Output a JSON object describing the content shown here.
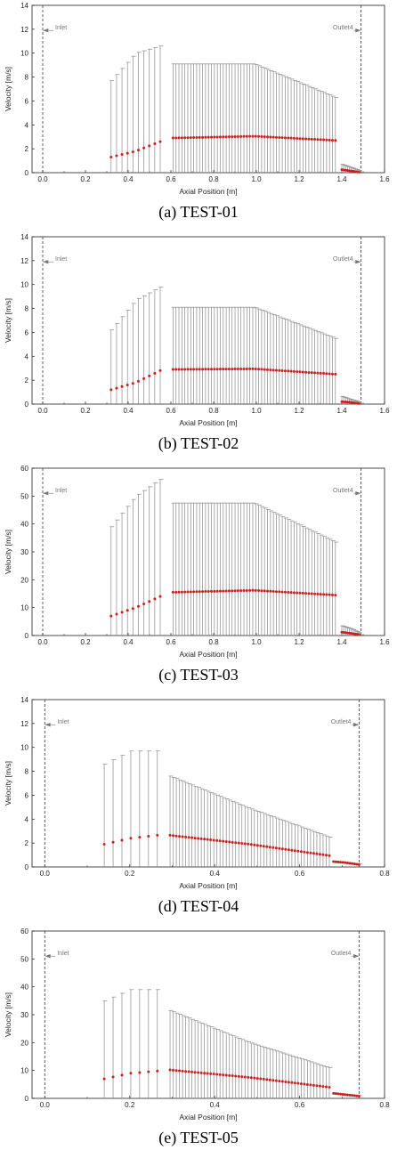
{
  "chart_data": [
    {
      "type": "scatter",
      "caption": "(a)  TEST-01",
      "xlabel": "Axial Position [m]",
      "ylabel": "Velocity [m/s]",
      "xlim": [
        -0.05,
        1.6
      ],
      "ylim": [
        0,
        14
      ],
      "xticks": [
        "0.0",
        "0.2",
        "0.4",
        "0.6",
        "0.8",
        "1.0",
        "1.2",
        "1.4",
        "1.6"
      ],
      "yticks": [
        "0",
        "2",
        "4",
        "6",
        "8",
        "10",
        "12",
        "14"
      ],
      "inlet": {
        "label": "Inlet",
        "x": 0.0
      },
      "outlet": {
        "label": "Outlet4",
        "x": 1.49
      },
      "groups": [
        {
          "x_start": 0.32,
          "x_end": 0.55,
          "n": 10,
          "mean": [
            1.3,
            1.8,
            2.6
          ],
          "upper": [
            7.7,
            10.0,
            10.6
          ]
        },
        {
          "x_start": 0.61,
          "x_end": 1.37,
          "n": 56,
          "mean": [
            2.9,
            3.05,
            2.7
          ],
          "upper": [
            9.1,
            9.1,
            6.3
          ]
        },
        {
          "x_start": 1.4,
          "x_end": 1.48,
          "n": 10,
          "mean": [
            0.25,
            0.15,
            0.05
          ],
          "upper": [
            0.7,
            0.45,
            0.2
          ]
        }
      ]
    },
    {
      "type": "scatter",
      "caption": "(b)  TEST-02",
      "xlabel": "Axial Position [m]",
      "ylabel": "Velocity [m/s]",
      "xlim": [
        -0.05,
        1.6
      ],
      "ylim": [
        0,
        14
      ],
      "xticks": [
        "0.0",
        "0.2",
        "0.4",
        "0.6",
        "0.8",
        "1.0",
        "1.2",
        "1.4",
        "1.6"
      ],
      "yticks": [
        "0",
        "2",
        "4",
        "6",
        "8",
        "10",
        "12",
        "14"
      ],
      "inlet": {
        "label": "Inlet",
        "x": 0.0
      },
      "outlet": {
        "label": "Outlet4",
        "x": 1.49
      },
      "groups": [
        {
          "x_start": 0.32,
          "x_end": 0.55,
          "n": 10,
          "mean": [
            1.2,
            1.8,
            2.8
          ],
          "upper": [
            6.2,
            8.7,
            9.8
          ]
        },
        {
          "x_start": 0.61,
          "x_end": 1.37,
          "n": 56,
          "mean": [
            2.9,
            2.95,
            2.5
          ],
          "upper": [
            8.1,
            8.1,
            5.5
          ]
        },
        {
          "x_start": 1.4,
          "x_end": 1.48,
          "n": 10,
          "mean": [
            0.2,
            0.15,
            0.05
          ],
          "upper": [
            0.65,
            0.4,
            0.2
          ]
        }
      ]
    },
    {
      "type": "scatter",
      "caption": "(c)  TEST-03",
      "xlabel": "Axial Position [m]",
      "ylabel": "Velocity [m/s]",
      "xlim": [
        -0.05,
        1.6
      ],
      "ylim": [
        0,
        60
      ],
      "xticks": [
        "0.0",
        "0.2",
        "0.4",
        "0.6",
        "0.8",
        "1.0",
        "1.2",
        "1.4",
        "1.6"
      ],
      "yticks": [
        "0",
        "10",
        "20",
        "30",
        "40",
        "50",
        "60"
      ],
      "inlet": {
        "label": "Inlet",
        "x": 0.0
      },
      "outlet": {
        "label": "Outlet4",
        "x": 1.49
      },
      "groups": [
        {
          "x_start": 0.32,
          "x_end": 0.55,
          "n": 10,
          "mean": [
            7.0,
            10.0,
            14.0
          ],
          "upper": [
            39.0,
            50.0,
            56.0
          ]
        },
        {
          "x_start": 0.61,
          "x_end": 1.37,
          "n": 56,
          "mean": [
            15.5,
            16.2,
            14.5
          ],
          "upper": [
            47.5,
            47.5,
            33.5
          ]
        },
        {
          "x_start": 1.4,
          "x_end": 1.48,
          "n": 10,
          "mean": [
            1.2,
            0.8,
            0.4
          ],
          "upper": [
            3.5,
            2.5,
            1.2
          ]
        }
      ]
    },
    {
      "type": "scatter",
      "caption": "(d)  TEST-04",
      "xlabel": "Axial Position [m]",
      "ylabel": "Velocity [m/s]",
      "xlim": [
        -0.03,
        0.8
      ],
      "ylim": [
        0,
        14
      ],
      "xticks": [
        "0.0",
        "0.2",
        "0.4",
        "0.6",
        "0.8"
      ],
      "yticks": [
        "0",
        "2",
        "4",
        "6",
        "8",
        "10",
        "12",
        "14"
      ],
      "inlet": {
        "label": "Inlet",
        "x": 0.0
      },
      "outlet": {
        "label": "Outlet4",
        "x": 0.74
      },
      "groups": [
        {
          "x_start": 0.14,
          "x_end": 0.265,
          "n": 7,
          "mean": [
            1.9,
            2.4,
            2.65
          ],
          "upper": [
            8.6,
            9.7,
            9.7
          ]
        },
        {
          "x_start": 0.295,
          "x_end": 0.67,
          "n": 52,
          "mean": [
            2.65,
            1.9,
            0.95
          ],
          "upper": [
            7.6,
            4.9,
            2.5
          ]
        },
        {
          "x_start": 0.68,
          "x_end": 0.74,
          "n": 12,
          "mean": [
            0.45,
            0.35,
            0.2
          ],
          "upper": [
            0.5,
            0.4,
            0.25
          ]
        }
      ]
    },
    {
      "type": "scatter",
      "caption": "(e)  TEST-05",
      "xlabel": "Axial Position [m]",
      "ylabel": "Velocity [m/s]",
      "xlim": [
        -0.03,
        0.8
      ],
      "ylim": [
        0,
        60
      ],
      "xticks": [
        "0.0",
        "0.2",
        "0.4",
        "0.6",
        "0.8"
      ],
      "yticks": [
        "0",
        "10",
        "20",
        "30",
        "40",
        "50",
        "60"
      ],
      "inlet": {
        "label": "Inlet",
        "x": 0.0
      },
      "outlet": {
        "label": "Outlet4",
        "x": 0.74
      },
      "groups": [
        {
          "x_start": 0.14,
          "x_end": 0.265,
          "n": 7,
          "mean": [
            7.0,
            9.0,
            9.8
          ],
          "upper": [
            35.0,
            39.0,
            39.0
          ]
        },
        {
          "x_start": 0.295,
          "x_end": 0.67,
          "n": 52,
          "mean": [
            10.2,
            7.5,
            4.0
          ],
          "upper": [
            31.5,
            20.0,
            11.0
          ]
        },
        {
          "x_start": 0.68,
          "x_end": 0.74,
          "n": 12,
          "mean": [
            1.8,
            1.3,
            0.8
          ],
          "upper": [
            2.0,
            1.5,
            1.0
          ]
        }
      ]
    }
  ],
  "colors": {
    "mean_marker": "#cc1f1f",
    "error_bar": "#8a8a8a",
    "axis": "#222222",
    "annotation": "#777777"
  }
}
